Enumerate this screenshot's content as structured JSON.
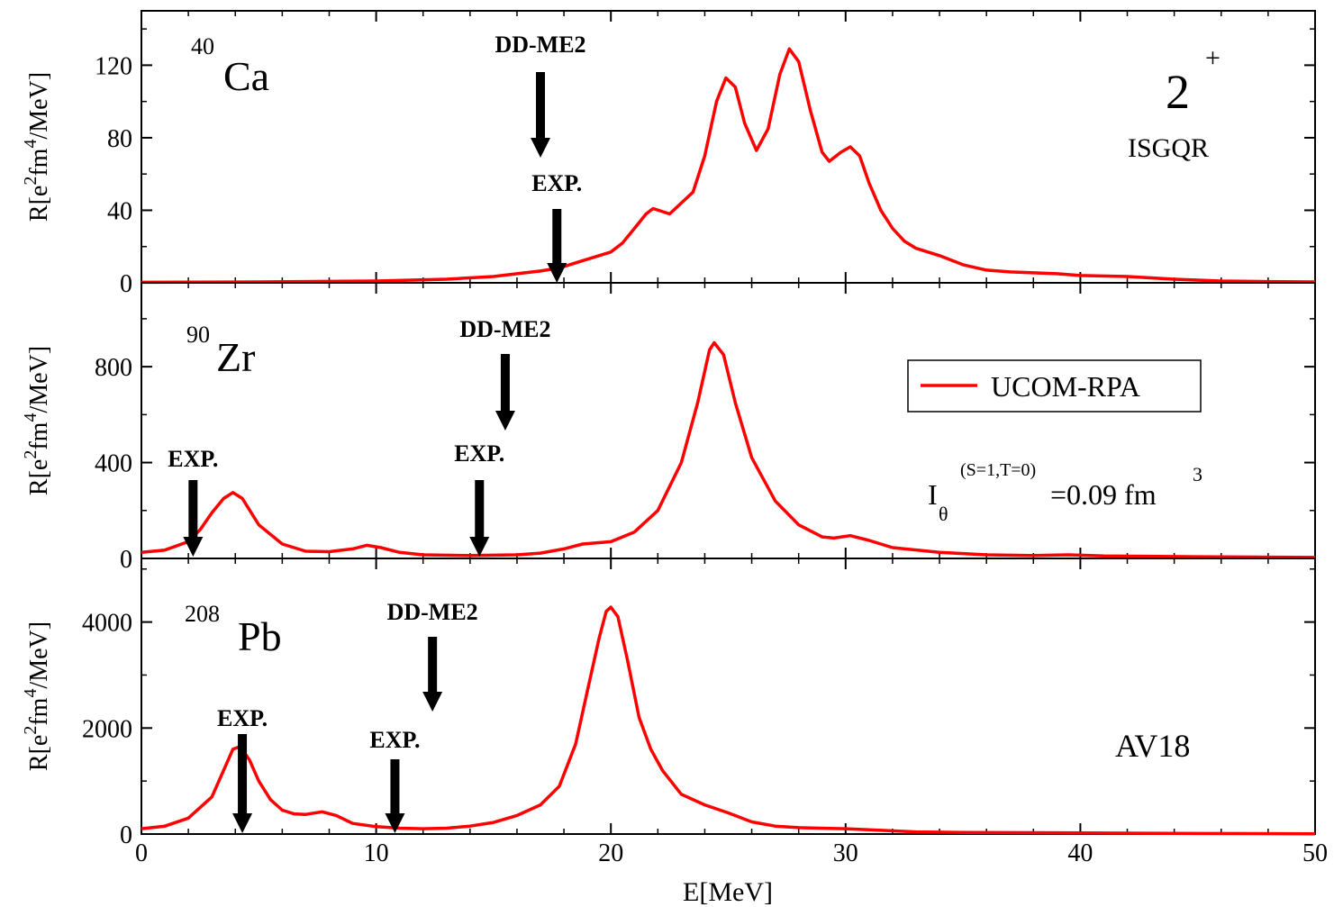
{
  "chart_data": [
    {
      "type": "line",
      "nucleus": {
        "mass": "40",
        "symbol": "Ca"
      },
      "multipole": {
        "base": "2",
        "sup": "+"
      },
      "mode": "ISGQR",
      "ylabel": [
        "R[e",
        "2",
        "fm",
        "4",
        "/MeV]"
      ],
      "x": [
        0,
        5,
        10,
        13,
        15,
        16,
        17,
        17.7,
        18,
        19,
        20,
        20.5,
        21,
        21.5,
        21.8,
        22.5,
        23.5,
        24,
        24.5,
        24.9,
        25.3,
        25.7,
        26.2,
        26.7,
        27.2,
        27.6,
        28,
        28.5,
        29,
        29.3,
        29.8,
        30.2,
        30.6,
        31,
        31.5,
        32,
        32.5,
        33,
        34,
        35,
        36,
        37,
        38,
        39,
        40,
        42,
        44,
        46,
        48,
        50
      ],
      "series": [
        {
          "color": "#ff0000",
          "values": [
            0.3,
            0.5,
            1,
            2,
            3.5,
            5,
            6.5,
            8,
            9,
            13,
            17,
            22,
            30,
            38,
            41,
            38,
            50,
            70,
            100,
            113,
            108,
            88,
            73,
            85,
            115,
            129,
            122,
            95,
            72,
            67,
            72,
            75,
            70,
            55,
            40,
            30,
            23,
            19,
            15,
            10,
            7,
            6,
            5.5,
            5,
            4,
            3.5,
            2,
            1,
            0.7,
            0.5
          ]
        }
      ],
      "xlim": [
        0,
        50
      ],
      "xticks": [
        0,
        10,
        20,
        30,
        40,
        50
      ],
      "ylim": [
        0,
        150
      ],
      "yticks": [
        0,
        40,
        80,
        120
      ],
      "annotations": [
        {
          "text": "DD-ME2",
          "x": 17.0
        },
        {
          "text": "EXP.",
          "x": 17.7
        }
      ]
    },
    {
      "type": "line",
      "nucleus": {
        "mass": "90",
        "symbol": "Zr"
      },
      "coupling": {
        "base": "I",
        "sub": "θ",
        "sup": "(S=1,T=0)",
        "text": "=0.09 fm",
        "sup2": "3"
      },
      "ylabel": [
        "R[e",
        "2",
        "fm",
        "4",
        "/MeV]"
      ],
      "x": [
        0,
        1,
        2,
        2.5,
        3,
        3.5,
        3.9,
        4.3,
        5,
        6,
        7,
        8,
        9,
        9.6,
        10.2,
        11,
        12,
        14,
        16,
        17,
        18,
        18.8,
        20,
        21,
        22,
        23,
        23.7,
        24.2,
        24.4,
        24.8,
        25.3,
        26,
        27,
        28,
        29,
        29.5,
        30.2,
        31,
        32,
        34,
        36,
        38,
        39.5,
        41,
        45,
        50
      ],
      "series": [
        {
          "name": "UCOM-RPA",
          "color": "#ff0000",
          "values": [
            25,
            35,
            70,
            120,
            190,
            250,
            275,
            250,
            140,
            60,
            30,
            28,
            40,
            55,
            45,
            25,
            15,
            12,
            15,
            22,
            40,
            60,
            70,
            110,
            200,
            400,
            650,
            870,
            900,
            850,
            650,
            420,
            240,
            140,
            90,
            85,
            95,
            75,
            45,
            25,
            15,
            12,
            15,
            10,
            7,
            4
          ]
        }
      ],
      "xlim": [
        0,
        50
      ],
      "xticks": [
        0,
        10,
        20,
        30,
        40,
        50
      ],
      "ylim": [
        0,
        1150
      ],
      "yticks": [
        0,
        400,
        800
      ],
      "annotations": [
        {
          "text": "DD-ME2",
          "x": 15.5
        },
        {
          "text": "EXP.",
          "x": 14.4
        },
        {
          "text": "EXP.",
          "x": 2.2
        }
      ]
    },
    {
      "type": "line",
      "nucleus": {
        "mass": "208",
        "symbol": "Pb"
      },
      "interaction": "AV18",
      "ylabel": [
        "R[e",
        "2",
        "fm",
        "4",
        "/MeV]"
      ],
      "xlabel": "E[MeV]",
      "x": [
        0,
        1,
        2,
        3,
        3.5,
        3.9,
        4.2,
        4.6,
        5,
        5.5,
        6,
        6.5,
        7,
        7.7,
        8.3,
        9,
        10,
        11,
        12,
        13,
        14,
        15,
        16,
        17,
        17.8,
        18.5,
        19,
        19.5,
        19.8,
        20,
        20.3,
        20.7,
        21.2,
        21.7,
        22.2,
        23,
        24,
        25,
        26,
        27,
        28,
        30,
        31,
        33,
        35,
        40,
        45,
        50
      ],
      "series": [
        {
          "color": "#ff0000",
          "values": [
            100,
            150,
            300,
            700,
            1200,
            1600,
            1650,
            1400,
            1000,
            650,
            450,
            380,
            370,
            420,
            350,
            200,
            140,
            110,
            100,
            110,
            150,
            220,
            350,
            550,
            900,
            1700,
            2700,
            3700,
            4200,
            4280,
            4100,
            3300,
            2200,
            1600,
            1200,
            750,
            550,
            400,
            230,
            150,
            120,
            100,
            80,
            40,
            30,
            20,
            10,
            5
          ]
        }
      ],
      "xlim": [
        0,
        50
      ],
      "xticks": [
        0,
        10,
        20,
        30,
        40,
        50
      ],
      "ylim": [
        0,
        5200
      ],
      "yticks": [
        0,
        2000,
        4000
      ],
      "annotations": [
        {
          "text": "DD-ME2",
          "x": 12.4
        },
        {
          "text": "EXP.",
          "x": 4.3
        },
        {
          "text": "EXP.",
          "x": 10.8
        }
      ]
    }
  ]
}
